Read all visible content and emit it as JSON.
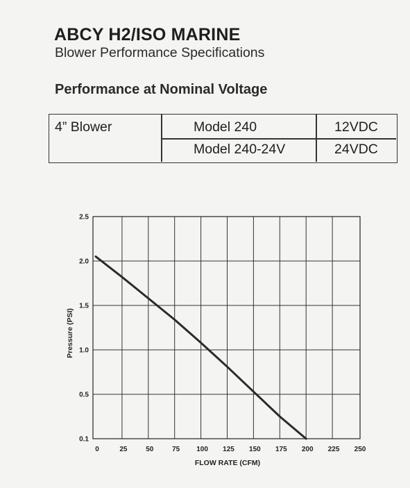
{
  "header": {
    "title": "ABCY H2/ISO MARINE",
    "subtitle": "Blower Performance Specifications"
  },
  "section_title": "Performance at Nominal Voltage",
  "spec_table": {
    "blower": "4” Blower",
    "rows": [
      {
        "model": "Model 240",
        "voltage": "12VDC"
      },
      {
        "model": "Model 240-24V",
        "voltage": "24VDC"
      }
    ]
  },
  "chart_data": {
    "type": "line",
    "xlabel": "FLOW RATE (CFM)",
    "ylabel": "Pressure (PSI)",
    "xlim": [
      0,
      250
    ],
    "ylim": [
      0.1,
      2.5
    ],
    "x_ticks": [
      0,
      25,
      50,
      75,
      100,
      125,
      150,
      175,
      200,
      225,
      250
    ],
    "y_ticks": [
      0.1,
      0.5,
      1.0,
      1.5,
      2.0,
      2.5
    ],
    "y_tick_labels": [
      "0.1",
      "0.5",
      "1.0",
      "1.5",
      "2.0",
      "2.5"
    ],
    "grid": true,
    "series": [
      {
        "x": [
          0,
          25,
          50,
          75,
          100,
          125,
          150,
          175,
          200
        ],
        "y": [
          2.05,
          1.82,
          1.58,
          1.34,
          1.08,
          0.81,
          0.53,
          0.3,
          0.1
        ]
      }
    ]
  }
}
